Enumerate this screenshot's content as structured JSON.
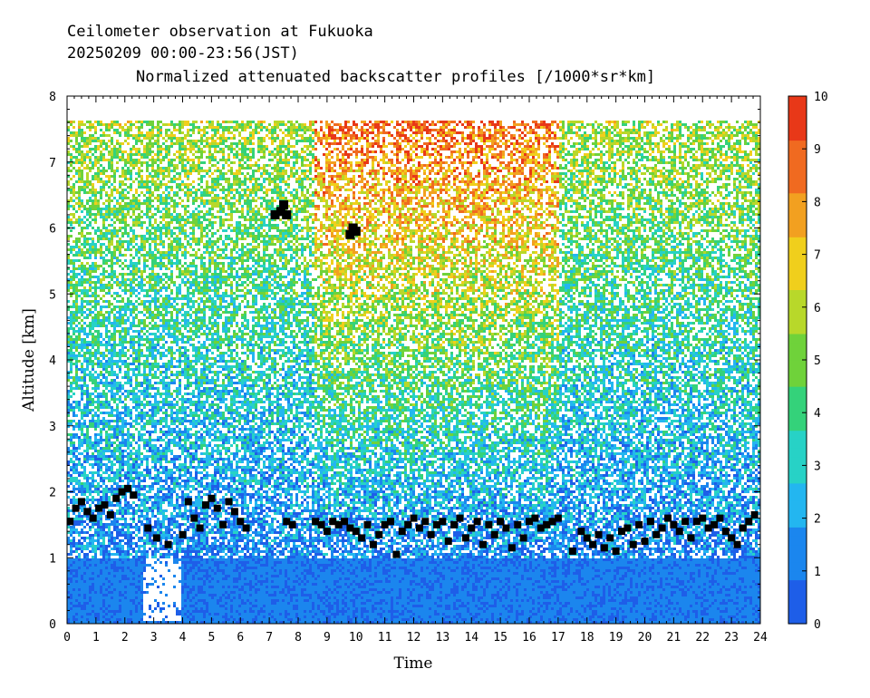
{
  "header": {
    "line1": "Ceilometer observation at Fukuoka",
    "line2": "20250209  00:00-23:56(JST)",
    "line3": "Normalized attenuated backscatter profiles [/1000*sr*km]"
  },
  "chart_data": {
    "type": "heatmap",
    "title": "Normalized attenuated backscatter profiles [/1000*sr*km]",
    "xlabel": "Time",
    "ylabel": "Altitude [km]",
    "xlim": [
      0,
      24
    ],
    "ylim": [
      0,
      8
    ],
    "x_ticks": [
      "0",
      "1",
      "2",
      "3",
      "4",
      "5",
      "6",
      "7",
      "8",
      "9",
      "10",
      "11",
      "12",
      "13",
      "14",
      "15",
      "16",
      "17",
      "18",
      "19",
      "20",
      "21",
      "22",
      "23",
      "24"
    ],
    "y_ticks": [
      "0",
      "1",
      "2",
      "3",
      "4",
      "5",
      "6",
      "7",
      "8"
    ],
    "data_top_altitude_km": 7.65,
    "colorbar": {
      "range": [
        0,
        10
      ],
      "ticks": [
        "0",
        "1",
        "2",
        "3",
        "4",
        "5",
        "6",
        "7",
        "8",
        "9",
        "10"
      ],
      "colors": [
        "#1e5ee8",
        "#1b86ee",
        "#23b6f0",
        "#27d2c6",
        "#34d27a",
        "#6fd23a",
        "#b8d82a",
        "#f0cf1c",
        "#f2a020",
        "#f06a20",
        "#e83818"
      ]
    },
    "regions": {
      "boundary_layer_top_km": 1.0,
      "high_signal_dense_hours": [
        8.5,
        17.0
      ],
      "clear_sky_gap_hours": [
        2.6,
        3.9
      ]
    },
    "cloud_base_series": {
      "name": "Cloud base",
      "color": "#000000",
      "x": [
        0.1,
        0.3,
        0.5,
        0.7,
        0.9,
        1.1,
        1.3,
        1.5,
        1.7,
        1.9,
        2.1,
        2.3,
        2.8,
        3.1,
        3.5,
        4.0,
        4.2,
        4.4,
        4.6,
        4.8,
        5.0,
        5.2,
        5.4,
        5.6,
        5.8,
        6.0,
        6.2,
        7.6,
        7.8,
        8.6,
        8.8,
        9.0,
        9.2,
        9.4,
        9.6,
        9.8,
        10.0,
        10.2,
        10.4,
        10.6,
        10.8,
        11.0,
        11.2,
        11.4,
        11.6,
        11.8,
        12.0,
        12.2,
        12.4,
        12.6,
        12.8,
        13.0,
        13.2,
        13.4,
        13.6,
        13.8,
        14.0,
        14.2,
        14.4,
        14.6,
        14.8,
        15.0,
        15.2,
        15.4,
        15.6,
        15.8,
        16.0,
        16.2,
        16.4,
        16.6,
        16.8,
        17.0,
        17.5,
        17.8,
        18.0,
        18.2,
        18.4,
        18.6,
        18.8,
        19.0,
        19.2,
        19.4,
        19.6,
        19.8,
        20.0,
        20.2,
        20.4,
        20.6,
        20.8,
        21.0,
        21.2,
        21.4,
        21.6,
        21.8,
        22.0,
        22.2,
        22.4,
        22.6,
        22.8,
        23.0,
        23.2,
        23.4,
        23.6,
        23.8
      ],
      "y": [
        1.55,
        1.75,
        1.85,
        1.7,
        1.6,
        1.75,
        1.8,
        1.65,
        1.9,
        2.0,
        2.05,
        1.95,
        1.45,
        1.3,
        1.2,
        1.35,
        1.85,
        1.6,
        1.45,
        1.8,
        1.9,
        1.75,
        1.5,
        1.85,
        1.7,
        1.55,
        1.45,
        1.55,
        1.5,
        1.55,
        1.5,
        1.4,
        1.55,
        1.5,
        1.55,
        1.45,
        1.4,
        1.3,
        1.5,
        1.2,
        1.35,
        1.5,
        1.55,
        1.05,
        1.4,
        1.5,
        1.6,
        1.45,
        1.55,
        1.35,
        1.5,
        1.55,
        1.25,
        1.5,
        1.6,
        1.3,
        1.45,
        1.55,
        1.2,
        1.5,
        1.35,
        1.55,
        1.45,
        1.15,
        1.5,
        1.3,
        1.55,
        1.6,
        1.45,
        1.5,
        1.55,
        1.6,
        1.1,
        1.4,
        1.3,
        1.2,
        1.35,
        1.15,
        1.3,
        1.1,
        1.4,
        1.45,
        1.2,
        1.5,
        1.25,
        1.55,
        1.35,
        1.45,
        1.6,
        1.5,
        1.4,
        1.55,
        1.3,
        1.55,
        1.6,
        1.45,
        1.5,
        1.6,
        1.4,
        1.3,
        1.2,
        1.45,
        1.55,
        1.65
      ]
    },
    "high_cloud_points": {
      "x": [
        7.2,
        7.4,
        7.5,
        7.6,
        9.8,
        9.9,
        10.0
      ],
      "y": [
        6.2,
        6.25,
        6.35,
        6.2,
        5.9,
        6.0,
        5.95
      ]
    }
  }
}
